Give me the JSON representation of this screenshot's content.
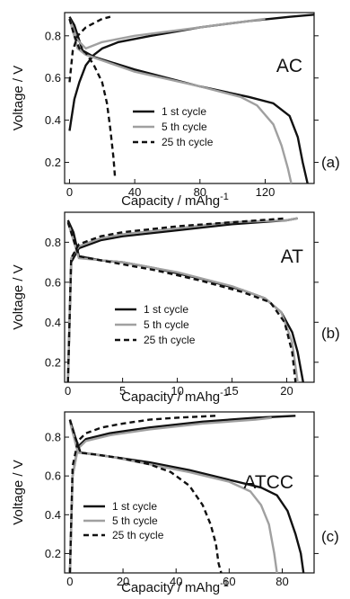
{
  "chart_data": [
    {
      "type": "line",
      "panel_label": "AC",
      "subfigure": "(a)",
      "xlabel": "Capacity / mAhg",
      "xlabel_sup": "-1",
      "ylabel": "Voltage / V",
      "xlim": [
        -3,
        150
      ],
      "ylim": [
        0.1,
        0.91
      ],
      "xticks": [
        0,
        40,
        80,
        120
      ],
      "yticks": [
        0.2,
        0.4,
        0.6,
        0.8
      ],
      "legend_position": "lower-right",
      "series": [
        {
          "name": "1 st cycle",
          "color": "#111111",
          "dash": "solid",
          "charge": [
            [
              0,
              0.35
            ],
            [
              1,
              0.4
            ],
            [
              3,
              0.5
            ],
            [
              6,
              0.58
            ],
            [
              10,
              0.66
            ],
            [
              15,
              0.71
            ],
            [
              20,
              0.74
            ],
            [
              30,
              0.77
            ],
            [
              50,
              0.8
            ],
            [
              80,
              0.84
            ],
            [
              110,
              0.87
            ],
            [
              135,
              0.89
            ],
            [
              150,
              0.9
            ]
          ],
          "discharge": [
            [
              0,
              0.89
            ],
            [
              3,
              0.85
            ],
            [
              8,
              0.73
            ],
            [
              15,
              0.7
            ],
            [
              40,
              0.64
            ],
            [
              80,
              0.56
            ],
            [
              110,
              0.51
            ],
            [
              125,
              0.48
            ],
            [
              135,
              0.42
            ],
            [
              140,
              0.32
            ],
            [
              143,
              0.2
            ],
            [
              146,
              0.1
            ]
          ]
        },
        {
          "name": "5 th cycle",
          "color": "#a0a0a0",
          "dash": "solid",
          "charge": [
            [
              0,
              0.88
            ],
            [
              5,
              0.78
            ],
            [
              10,
              0.74
            ],
            [
              20,
              0.77
            ],
            [
              40,
              0.8
            ],
            [
              70,
              0.83
            ],
            [
              100,
              0.86
            ],
            [
              120,
              0.88
            ]
          ],
          "discharge": [
            [
              0,
              0.88
            ],
            [
              5,
              0.74
            ],
            [
              10,
              0.71
            ],
            [
              40,
              0.63
            ],
            [
              80,
              0.56
            ],
            [
              105,
              0.51
            ],
            [
              115,
              0.47
            ],
            [
              125,
              0.38
            ],
            [
              130,
              0.28
            ],
            [
              134,
              0.17
            ],
            [
              136,
              0.1
            ]
          ]
        },
        {
          "name": "25 th cycle",
          "color": "#111111",
          "dash": "dashed",
          "charge": [
            [
              0,
              0.58
            ],
            [
              2,
              0.73
            ],
            [
              5,
              0.8
            ],
            [
              10,
              0.84
            ],
            [
              15,
              0.86
            ],
            [
              20,
              0.88
            ],
            [
              25,
              0.89
            ]
          ],
          "discharge": [
            [
              0,
              0.88
            ],
            [
              3,
              0.8
            ],
            [
              6,
              0.74
            ],
            [
              10,
              0.72
            ],
            [
              15,
              0.66
            ],
            [
              20,
              0.58
            ],
            [
              23,
              0.48
            ],
            [
              25,
              0.36
            ],
            [
              27,
              0.22
            ],
            [
              28,
              0.12
            ]
          ]
        }
      ]
    },
    {
      "type": "line",
      "panel_label": "AT",
      "subfigure": "(b)",
      "xlabel": "Capacity / mAhg",
      "xlabel_sup": "-1",
      "ylabel": "Voltage / V",
      "xlim": [
        -0.3,
        22.5
      ],
      "ylim": [
        0.1,
        0.95
      ],
      "xticks": [
        0,
        5,
        10,
        15,
        20
      ],
      "yticks": [
        0.2,
        0.4,
        0.6,
        0.8
      ],
      "legend_position": "lower-center",
      "series": [
        {
          "name": "1 st cycle",
          "color": "#111111",
          "dash": "solid",
          "charge": [
            [
              0,
              0.1
            ],
            [
              0.3,
              0.7
            ],
            [
              1,
              0.77
            ],
            [
              3,
              0.81
            ],
            [
              5,
              0.83
            ],
            [
              10,
              0.86
            ],
            [
              15,
              0.89
            ],
            [
              20,
              0.91
            ],
            [
              21,
              0.92
            ]
          ],
          "discharge": [
            [
              0,
              0.91
            ],
            [
              0.5,
              0.85
            ],
            [
              1,
              0.73
            ],
            [
              3,
              0.71
            ],
            [
              5,
              0.7
            ],
            [
              8,
              0.67
            ],
            [
              12,
              0.62
            ],
            [
              16,
              0.56
            ],
            [
              18,
              0.52
            ],
            [
              19.5,
              0.45
            ],
            [
              20.5,
              0.35
            ],
            [
              21,
              0.25
            ],
            [
              21.5,
              0.1
            ]
          ]
        },
        {
          "name": "5 th cycle",
          "color": "#a0a0a0",
          "dash": "solid",
          "charge": [
            [
              0,
              0.1
            ],
            [
              0.3,
              0.72
            ],
            [
              1,
              0.78
            ],
            [
              3,
              0.82
            ],
            [
              5,
              0.84
            ],
            [
              10,
              0.87
            ],
            [
              15,
              0.9
            ],
            [
              20,
              0.91
            ],
            [
              21,
              0.92
            ]
          ],
          "discharge": [
            [
              0,
              0.9
            ],
            [
              1,
              0.72
            ],
            [
              5,
              0.7
            ],
            [
              10,
              0.65
            ],
            [
              15,
              0.58
            ],
            [
              18,
              0.52
            ],
            [
              19.5,
              0.45
            ],
            [
              20.5,
              0.3
            ],
            [
              21,
              0.1
            ]
          ]
        },
        {
          "name": "25 th cycle",
          "color": "#111111",
          "dash": "dashed",
          "charge": [
            [
              0,
              0.1
            ],
            [
              0.3,
              0.72
            ],
            [
              1,
              0.79
            ],
            [
              3,
              0.83
            ],
            [
              5,
              0.85
            ],
            [
              10,
              0.88
            ],
            [
              15,
              0.9
            ],
            [
              20,
              0.92
            ]
          ],
          "discharge": [
            [
              0,
              0.9
            ],
            [
              1,
              0.73
            ],
            [
              3,
              0.71
            ],
            [
              8,
              0.66
            ],
            [
              12,
              0.61
            ],
            [
              16,
              0.55
            ],
            [
              18.5,
              0.5
            ],
            [
              19.8,
              0.4
            ],
            [
              20.5,
              0.25
            ],
            [
              20.8,
              0.1
            ]
          ]
        }
      ]
    },
    {
      "type": "line",
      "panel_label": "ATCC",
      "subfigure": "(c)",
      "xlabel": "Capacity / mAhg",
      "xlabel_sup": "-1",
      "ylabel": "Voltage / V",
      "xlim": [
        -2,
        92
      ],
      "ylim": [
        0.1,
        0.93
      ],
      "xticks": [
        0,
        20,
        40,
        60,
        80
      ],
      "yticks": [
        0.2,
        0.4,
        0.6,
        0.8
      ],
      "legend_position": "lower-left",
      "series": [
        {
          "name": "1 st cycle",
          "color": "#111111",
          "dash": "solid",
          "charge": [
            [
              0,
              0.1
            ],
            [
              1,
              0.6
            ],
            [
              3,
              0.75
            ],
            [
              6,
              0.79
            ],
            [
              15,
              0.82
            ],
            [
              30,
              0.85
            ],
            [
              50,
              0.88
            ],
            [
              70,
              0.9
            ],
            [
              85,
              0.91
            ]
          ],
          "discharge": [
            [
              0,
              0.89
            ],
            [
              2,
              0.8
            ],
            [
              4,
              0.72
            ],
            [
              15,
              0.7
            ],
            [
              30,
              0.67
            ],
            [
              45,
              0.63
            ],
            [
              60,
              0.58
            ],
            [
              72,
              0.54
            ],
            [
              78,
              0.5
            ],
            [
              82,
              0.42
            ],
            [
              85,
              0.3
            ],
            [
              87,
              0.2
            ],
            [
              88,
              0.1
            ]
          ]
        },
        {
          "name": "5 th cycle",
          "color": "#a0a0a0",
          "dash": "solid",
          "charge": [
            [
              0,
              0.1
            ],
            [
              1,
              0.6
            ],
            [
              3,
              0.74
            ],
            [
              6,
              0.78
            ],
            [
              15,
              0.81
            ],
            [
              30,
              0.84
            ],
            [
              50,
              0.87
            ],
            [
              70,
              0.89
            ],
            [
              76,
              0.9
            ]
          ],
          "discharge": [
            [
              0,
              0.88
            ],
            [
              3,
              0.72
            ],
            [
              15,
              0.7
            ],
            [
              30,
              0.66
            ],
            [
              45,
              0.62
            ],
            [
              60,
              0.57
            ],
            [
              68,
              0.52
            ],
            [
              72,
              0.45
            ],
            [
              75,
              0.35
            ],
            [
              77,
              0.2
            ],
            [
              78,
              0.1
            ]
          ]
        },
        {
          "name": "25 th cycle",
          "color": "#111111",
          "dash": "dashed",
          "charge": [
            [
              0,
              0.1
            ],
            [
              1,
              0.65
            ],
            [
              3,
              0.78
            ],
            [
              6,
              0.82
            ],
            [
              12,
              0.85
            ],
            [
              20,
              0.87
            ],
            [
              30,
              0.89
            ],
            [
              40,
              0.9
            ],
            [
              55,
              0.91
            ]
          ],
          "discharge": [
            [
              0,
              0.89
            ],
            [
              2,
              0.8
            ],
            [
              4,
              0.72
            ],
            [
              10,
              0.71
            ],
            [
              20,
              0.69
            ],
            [
              30,
              0.66
            ],
            [
              38,
              0.62
            ],
            [
              45,
              0.55
            ],
            [
              50,
              0.45
            ],
            [
              53,
              0.35
            ],
            [
              55,
              0.25
            ],
            [
              56,
              0.15
            ],
            [
              57,
              0.1
            ]
          ]
        }
      ]
    }
  ]
}
